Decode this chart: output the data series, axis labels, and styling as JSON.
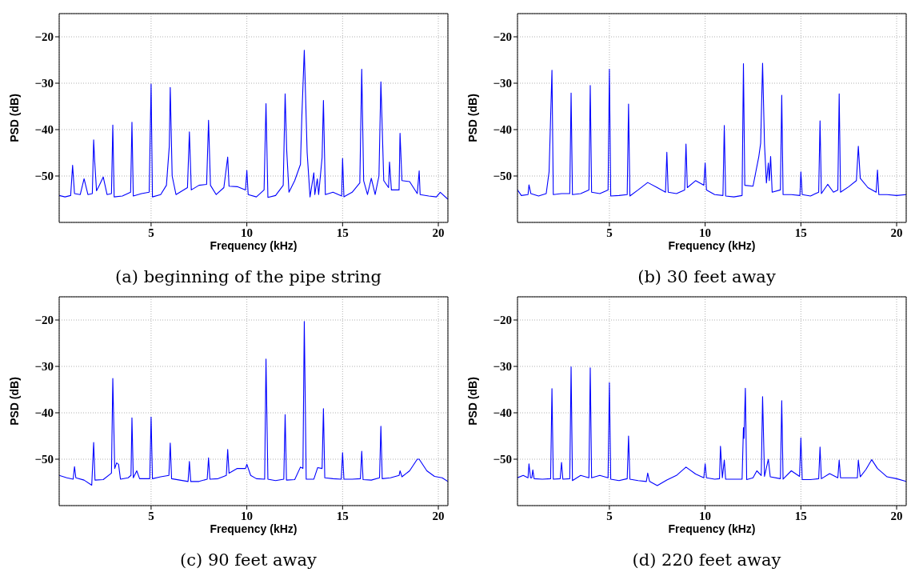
{
  "chart_data": [
    {
      "type": "line",
      "title": "(a) beginning of the pipe string",
      "xlabel": "Frequency (kHz)",
      "ylabel": "PSD (dB)",
      "xlim": [
        0.2,
        20.5
      ],
      "ylim": [
        -60,
        -15
      ],
      "xticks": [
        5,
        10,
        15,
        20
      ],
      "yticks": [
        -50,
        -40,
        -30,
        -20
      ],
      "grid": true,
      "x": [
        0.2,
        0.5,
        0.8,
        0.9,
        1.0,
        1.3,
        1.5,
        1.7,
        1.93,
        2.0,
        2.05,
        2.15,
        2.3,
        2.5,
        2.7,
        2.93,
        3.0,
        3.07,
        3.5,
        3.93,
        4.0,
        4.07,
        4.5,
        4.9,
        5.0,
        5.07,
        5.5,
        5.8,
        5.95,
        6.0,
        6.1,
        6.3,
        6.9,
        7.0,
        7.1,
        7.5,
        7.9,
        8.0,
        8.1,
        8.4,
        8.8,
        9.0,
        9.07,
        9.5,
        9.93,
        10.0,
        10.07,
        10.5,
        10.9,
        11.0,
        11.1,
        11.5,
        11.9,
        12.0,
        12.08,
        12.2,
        12.5,
        12.8,
        12.87,
        13.0,
        13.15,
        13.3,
        13.5,
        13.55,
        13.68,
        13.75,
        13.93,
        14.0,
        14.1,
        14.5,
        14.95,
        15.0,
        15.07,
        15.5,
        15.9,
        16.0,
        16.1,
        16.3,
        16.5,
        16.7,
        16.9,
        17.0,
        17.15,
        17.4,
        17.45,
        17.55,
        17.95,
        18.0,
        18.1,
        18.5,
        18.9,
        19.0,
        19.05,
        19.5,
        19.9,
        20.1,
        20.5
      ],
      "series": [
        {
          "color": "#0000ff",
          "values": [
            -54.2,
            -54.5,
            -54.2,
            -47.7,
            -53.8,
            -54,
            -50.6,
            -54,
            -53.8,
            -42.2,
            -46.5,
            -53.2,
            -52,
            -50.2,
            -54,
            -53.8,
            -39,
            -54.5,
            -54.3,
            -53.5,
            -38.4,
            -54.3,
            -53.8,
            -53.5,
            -30.2,
            -54.5,
            -54,
            -52,
            -43.6,
            -30.9,
            -50,
            -54,
            -52.5,
            -40.5,
            -53,
            -52,
            -51.8,
            -38,
            -52,
            -54,
            -52.5,
            -45.9,
            -52.2,
            -52.3,
            -53,
            -48.8,
            -54,
            -54.5,
            -53,
            -34.4,
            -54.6,
            -54.2,
            -52,
            -32.3,
            -44.3,
            -53.5,
            -51,
            -47.5,
            -37.5,
            -22.9,
            -45,
            -54.5,
            -49.3,
            -54,
            -50.6,
            -54,
            -46,
            -33.7,
            -54,
            -53.5,
            -54.3,
            -46.2,
            -54.5,
            -53.5,
            -51.5,
            -27,
            -51,
            -54,
            -50.5,
            -54,
            -50,
            -29.7,
            -51,
            -52.5,
            -47,
            -53,
            -53,
            -40.8,
            -51,
            -51.2,
            -53.8,
            -48.9,
            -54,
            -54.3,
            -54.5,
            -53.5,
            -55
          ]
        }
      ]
    },
    {
      "type": "line",
      "title": "(b) 30 feet away",
      "xlabel": "Frequency (kHz)",
      "ylabel": "PSD (dB)",
      "xlim": [
        0.2,
        20.5
      ],
      "ylim": [
        -60,
        -15
      ],
      "xticks": [
        5,
        10,
        15,
        20
      ],
      "yticks": [
        -50,
        -40,
        -30,
        -20
      ],
      "grid": true,
      "x": [
        0.2,
        0.4,
        0.75,
        0.8,
        0.9,
        1.3,
        1.7,
        1.85,
        2.0,
        2.07,
        2.5,
        2.93,
        3.0,
        3.07,
        3.5,
        3.93,
        4.0,
        4.07,
        4.5,
        4.93,
        5.0,
        5.07,
        5.5,
        5.93,
        6.0,
        6.07,
        6.5,
        7.0,
        7.5,
        7.93,
        8.0,
        8.07,
        8.5,
        8.93,
        9.0,
        9.07,
        9.5,
        9.93,
        10.0,
        10.07,
        10.5,
        10.93,
        11.0,
        11.07,
        11.5,
        11.93,
        12.0,
        12.07,
        12.5,
        12.8,
        12.9,
        13.0,
        13.1,
        13.2,
        13.3,
        13.35,
        13.42,
        13.5,
        13.93,
        14.0,
        14.07,
        14.5,
        14.95,
        15.0,
        15.07,
        15.5,
        15.93,
        16.0,
        16.07,
        16.4,
        16.7,
        16.93,
        17.0,
        17.07,
        17.5,
        17.9,
        18.0,
        18.1,
        18.5,
        18.93,
        19.0,
        19.07,
        19.5,
        20.0,
        20.5
      ],
      "series": [
        {
          "color": "#0000ff",
          "values": [
            -53,
            -54.2,
            -54,
            -51.9,
            -53.8,
            -54.3,
            -53.8,
            -49.1,
            -27.2,
            -54,
            -53.8,
            -53.8,
            -32.1,
            -54,
            -53.8,
            -53,
            -30.5,
            -53.5,
            -53.8,
            -53,
            -27,
            -54.3,
            -54.2,
            -54,
            -34.5,
            -54.3,
            -53,
            -51.4,
            -52.5,
            -53.5,
            -44.9,
            -53.5,
            -53.8,
            -53,
            -43.1,
            -52.5,
            -51,
            -52,
            -47.2,
            -53,
            -54,
            -54.2,
            -39.1,
            -54.3,
            -54.5,
            -54.2,
            -25.8,
            -52,
            -52.2,
            -45.9,
            -42.9,
            -25.7,
            -43.2,
            -51.5,
            -47.2,
            -51,
            -45.8,
            -53.5,
            -53,
            -32.6,
            -54,
            -54,
            -54.2,
            -49.1,
            -54,
            -54.3,
            -53.5,
            -38.1,
            -53.8,
            -51.8,
            -53.5,
            -53,
            -32.3,
            -53.5,
            -52.3,
            -51,
            -43.6,
            -50.5,
            -52.5,
            -53.5,
            -48.7,
            -54,
            -54,
            -54.2,
            -54
          ]
        }
      ]
    },
    {
      "type": "line",
      "title": "(c) 90 feet away",
      "xlabel": "Frequency (kHz)",
      "ylabel": "PSD (dB)",
      "xlim": [
        0.2,
        20.5
      ],
      "ylim": [
        -60,
        -15
      ],
      "xticks": [
        5,
        10,
        15,
        20
      ],
      "yticks": [
        -50,
        -40,
        -30,
        -20
      ],
      "grid": true,
      "x": [
        0.2,
        0.6,
        0.93,
        1.0,
        1.07,
        1.5,
        1.9,
        2.0,
        2.07,
        2.5,
        2.93,
        3.0,
        3.1,
        3.2,
        3.3,
        3.4,
        3.8,
        3.95,
        4.0,
        4.07,
        4.25,
        4.4,
        4.93,
        5.0,
        5.07,
        5.5,
        5.93,
        6.0,
        6.07,
        6.5,
        6.93,
        7.0,
        7.07,
        7.5,
        7.93,
        8.0,
        8.07,
        8.5,
        8.93,
        9.0,
        9.07,
        9.5,
        9.93,
        10.0,
        10.2,
        10.5,
        10.93,
        11.0,
        11.1,
        11.5,
        11.93,
        12.0,
        12.07,
        12.5,
        12.8,
        12.93,
        13.0,
        13.1,
        13.5,
        13.7,
        13.93,
        14.0,
        14.07,
        14.5,
        14.93,
        15.0,
        15.07,
        15.5,
        15.93,
        16.0,
        16.07,
        16.5,
        16.93,
        17.0,
        17.07,
        17.5,
        17.95,
        18.0,
        18.1,
        18.5,
        18.9,
        19.0,
        19.4,
        19.8,
        20.2,
        20.5
      ],
      "series": [
        {
          "color": "#0000ff",
          "values": [
            -53.5,
            -54,
            -54.3,
            -51.6,
            -54,
            -54.5,
            -55.6,
            -46.4,
            -54.5,
            -54.4,
            -53,
            -32.6,
            -52,
            -50.8,
            -51.1,
            -54.3,
            -54,
            -53.5,
            -41.1,
            -54,
            -52.5,
            -54.2,
            -54.2,
            -40.9,
            -54.2,
            -53.8,
            -53.5,
            -46.5,
            -54.2,
            -54.5,
            -54.8,
            -50.5,
            -54.8,
            -54.8,
            -54.3,
            -49.7,
            -54.3,
            -54.2,
            -53.5,
            -47.9,
            -53,
            -52,
            -52,
            -51.1,
            -53.5,
            -54.2,
            -54.3,
            -28.4,
            -54.3,
            -54.6,
            -54.3,
            -40.4,
            -54.5,
            -54.4,
            -51.7,
            -52,
            -20.3,
            -54.3,
            -54.3,
            -51.8,
            -52,
            -39.1,
            -54,
            -54.2,
            -54.3,
            -48.6,
            -54.3,
            -54.3,
            -54.2,
            -48.3,
            -54.4,
            -54.5,
            -54,
            -42.9,
            -54.2,
            -54,
            -53.5,
            -52.5,
            -53.8,
            -52.5,
            -50,
            -50,
            -52.5,
            -53.7,
            -54,
            -54.8
          ]
        }
      ]
    },
    {
      "type": "line",
      "title": "(d) 220 feet away",
      "xlabel": "Frequency (kHz)",
      "ylabel": "PSD (dB)",
      "xlim": [
        0.2,
        20.5
      ],
      "ylim": [
        -60,
        -15
      ],
      "xticks": [
        5,
        10,
        15,
        20
      ],
      "yticks": [
        -50,
        -40,
        -30,
        -20
      ],
      "grid": true,
      "x": [
        0.2,
        0.5,
        0.75,
        0.8,
        0.88,
        0.95,
        1.0,
        1.07,
        1.5,
        1.93,
        2.0,
        2.07,
        2.43,
        2.5,
        2.57,
        2.93,
        3.0,
        3.07,
        3.5,
        3.93,
        4.0,
        4.07,
        4.5,
        4.93,
        5.0,
        5.07,
        5.5,
        5.93,
        6.0,
        6.07,
        6.5,
        6.93,
        7.0,
        7.1,
        7.5,
        8.0,
        8.5,
        9.0,
        9.5,
        9.93,
        10.0,
        10.07,
        10.5,
        10.75,
        10.8,
        10.9,
        11.0,
        11.07,
        11.5,
        11.93,
        12.0,
        12.03,
        12.1,
        12.17,
        12.5,
        12.7,
        12.93,
        13.0,
        13.1,
        13.3,
        13.4,
        13.93,
        14.0,
        14.07,
        14.5,
        14.93,
        15.0,
        15.07,
        15.5,
        15.93,
        16.0,
        16.07,
        16.5,
        16.93,
        17.0,
        17.07,
        17.5,
        17.95,
        18.0,
        18.1,
        18.4,
        18.7,
        19.0,
        19.5,
        20.0,
        20.5
      ],
      "series": [
        {
          "color": "#0000ff",
          "values": [
            -54,
            -53.5,
            -54,
            -51,
            -54,
            -54,
            -52.3,
            -54.2,
            -54.3,
            -54.2,
            -34.8,
            -54.3,
            -54.2,
            -50.7,
            -54.3,
            -54.2,
            -30.1,
            -54.6,
            -53.5,
            -54,
            -30.3,
            -54,
            -53.5,
            -54,
            -33.5,
            -54.3,
            -54.6,
            -54.2,
            -45,
            -54.3,
            -54.6,
            -54.8,
            -53,
            -54.8,
            -55.7,
            -54.5,
            -53.5,
            -51.7,
            -53.2,
            -54,
            -51,
            -54,
            -54.3,
            -54.2,
            -47.2,
            -54,
            -50.2,
            -54.3,
            -54.3,
            -54.3,
            -43.2,
            -45.5,
            -34.7,
            -54.4,
            -54,
            -52.5,
            -53.5,
            -36.5,
            -53.7,
            -50,
            -53.8,
            -54.2,
            -37.4,
            -54.3,
            -52.5,
            -53.7,
            -45.4,
            -54.4,
            -54.4,
            -54.2,
            -47.4,
            -54.2,
            -53.1,
            -54,
            -50.2,
            -54,
            -54,
            -54,
            -50.2,
            -53.8,
            -52.2,
            -50.1,
            -52,
            -53.8,
            -54.2,
            -54.8
          ]
        }
      ]
    }
  ]
}
